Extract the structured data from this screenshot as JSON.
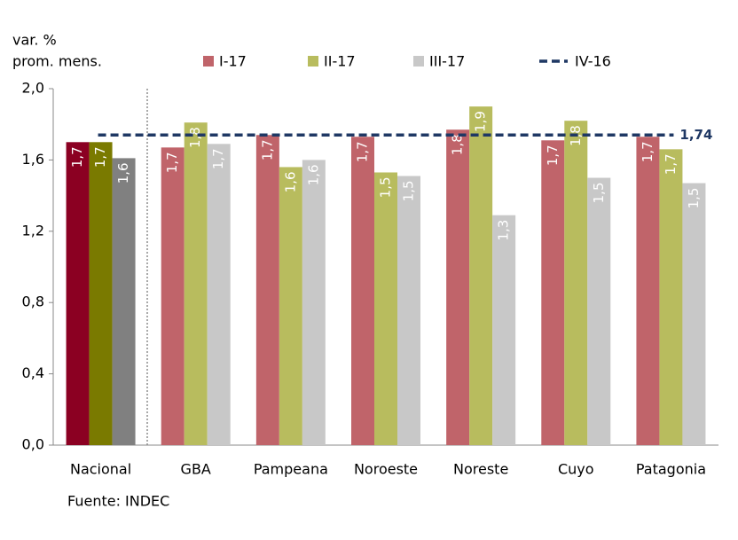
{
  "chart_data": {
    "type": "bar",
    "ylabel": [
      "var. %",
      "prom. mens."
    ],
    "source": "Fuente: INDEC",
    "categories": [
      "Nacional",
      "GBA",
      "Pampeana",
      "Noroeste",
      "Noreste",
      "Cuyo",
      "Patagonia"
    ],
    "series": [
      {
        "name": "I-17",
        "color": "#c0646a",
        "colors": [
          "#8b0022",
          "#c0646a",
          "#c0646a",
          "#c0646a",
          "#c0646a",
          "#c0646a",
          "#c0646a"
        ],
        "values": [
          1.7,
          1.67,
          1.74,
          1.73,
          1.77,
          1.71,
          1.73
        ],
        "value_labels": [
          "1,7",
          "1,7",
          "1,7",
          "1,7",
          "1,8",
          "1,7",
          "1,7"
        ]
      },
      {
        "name": "II-17",
        "color": "#b8bc5e",
        "colors": [
          "#7a7a00",
          "#b8bc5e",
          "#b8bc5e",
          "#b8bc5e",
          "#b8bc5e",
          "#b8bc5e",
          "#b8bc5e"
        ],
        "values": [
          1.7,
          1.81,
          1.56,
          1.53,
          1.9,
          1.82,
          1.66
        ],
        "value_labels": [
          "1,7",
          "1,8",
          "1,6",
          "1,5",
          "1,9",
          "1,8",
          "1,7"
        ]
      },
      {
        "name": "III-17",
        "color": "#c8c8c8",
        "colors": [
          "#808080",
          "#c8c8c8",
          "#c8c8c8",
          "#c8c8c8",
          "#c8c8c8",
          "#c8c8c8",
          "#c8c8c8"
        ],
        "values": [
          1.61,
          1.69,
          1.6,
          1.51,
          1.29,
          1.5,
          1.47
        ],
        "value_labels": [
          "1,6",
          "1,7",
          "1,6",
          "1,5",
          "1,3",
          "1,5",
          "1,5"
        ]
      }
    ],
    "reference_lines": [
      {
        "name": "IV-16",
        "value": 1.74,
        "label": "1,74",
        "color": "#1f3864",
        "dashed": true
      }
    ],
    "ylim": [
      0,
      2
    ],
    "yticks": [
      {
        "value": 0,
        "label": "0,0"
      },
      {
        "value": 0.4,
        "label": "0,4"
      },
      {
        "value": 0.8,
        "label": "0,8"
      },
      {
        "value": 1.2,
        "label": "1,2"
      },
      {
        "value": 1.6,
        "label": "1,6"
      },
      {
        "value": 2,
        "label": "2,0"
      }
    ],
    "grid": false
  }
}
